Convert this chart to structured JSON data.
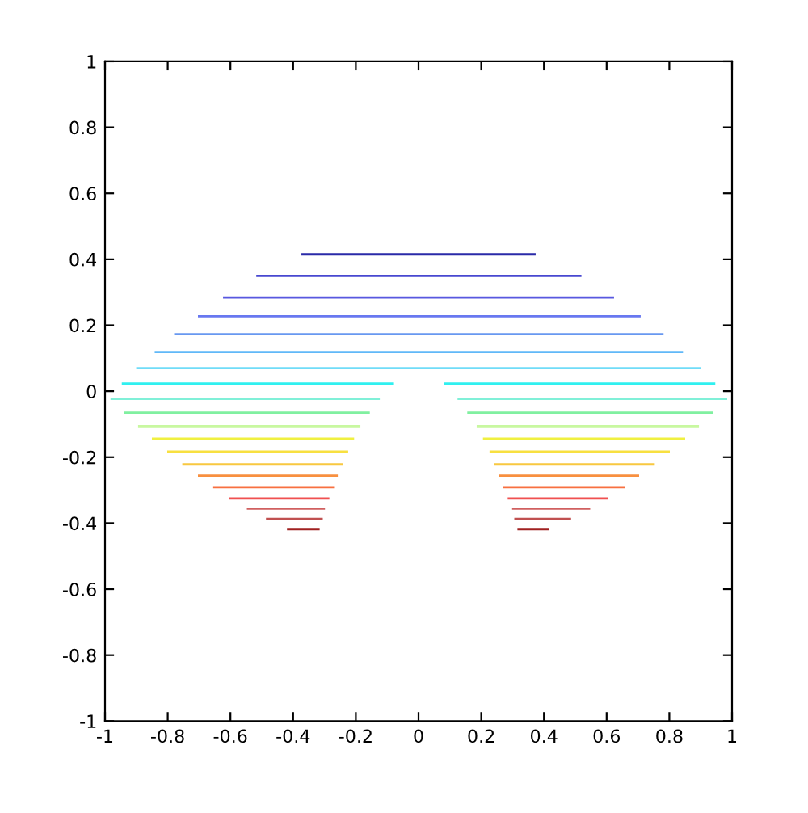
{
  "chart_data": {
    "type": "line",
    "xlim": [
      -1,
      1
    ],
    "ylim": [
      -1,
      1
    ],
    "xticks": [
      -1,
      {
        "value": -0.8,
        "label": "-0.8"
      },
      {
        "value": -0.6,
        "label": "-0.6"
      },
      {
        "value": -0.4,
        "label": "-0.4"
      },
      {
        "value": -0.2,
        "label": "-0.2"
      },
      0,
      0.2,
      0.4,
      0.6,
      0.8,
      1
    ],
    "yticks": [
      -1,
      {
        "value": -0.8,
        "label": "-0.8"
      },
      {
        "value": -0.6,
        "label": "-0.6"
      },
      {
        "value": -0.4,
        "label": "-0.4"
      },
      {
        "value": -0.2,
        "label": "-0.2"
      },
      0,
      0.2,
      0.4,
      0.6,
      0.8,
      1
    ],
    "grid": false,
    "marker": "none",
    "line_style": "solid",
    "series": [
      {
        "color": "#2a2aa8",
        "x": [
          -0.37,
          0.37
        ],
        "values": [
          0.415,
          0.415
        ]
      },
      {
        "color": "#4848d0",
        "x": [
          -0.514,
          0.516
        ],
        "values": [
          0.35,
          0.35
        ]
      },
      {
        "color": "#5858e0",
        "x": [
          -0.62,
          0.62
        ],
        "values": [
          0.284,
          0.284
        ]
      },
      {
        "color": "#6878f0",
        "x": [
          -0.7,
          0.705
        ],
        "values": [
          0.227,
          0.227
        ]
      },
      {
        "color": "#6898f0",
        "x": [
          -0.776,
          0.778
        ],
        "values": [
          0.173,
          0.173
        ]
      },
      {
        "color": "#60b8f8",
        "x": [
          -0.838,
          0.84
        ],
        "values": [
          0.119,
          0.119
        ]
      },
      {
        "color": "#70dcf8",
        "x": [
          -0.897,
          0.897
        ],
        "values": [
          0.07,
          0.07
        ]
      },
      {
        "color": "#30f0f0",
        "x": [
          -0.943,
          -0.082,
          null,
          0.085,
          0.943
        ],
        "values": [
          0.023,
          0.023,
          null,
          0.023,
          0.023
        ]
      },
      {
        "color": "#80f0d8",
        "x": [
          -0.979,
          -0.127,
          null,
          0.128,
          0.981
        ],
        "values": [
          -0.023,
          -0.023,
          null,
          -0.023,
          -0.023
        ]
      },
      {
        "color": "#80f0a0",
        "x": [
          -0.936,
          -0.159,
          null,
          0.159,
          0.936
        ],
        "values": [
          -0.065,
          -0.065,
          null,
          -0.065,
          -0.065
        ]
      },
      {
        "color": "#c8f8a0",
        "x": [
          -0.891,
          -0.189,
          null,
          0.189,
          0.891
        ],
        "values": [
          -0.106,
          -0.106,
          null,
          -0.106,
          -0.106
        ]
      },
      {
        "color": "#f0f040",
        "x": [
          -0.847,
          -0.209,
          null,
          0.209,
          0.847
        ],
        "values": [
          -0.144,
          -0.144,
          null,
          -0.144,
          -0.144
        ]
      },
      {
        "color": "#f8e040",
        "x": [
          -0.798,
          -0.228,
          null,
          0.23,
          0.798
        ],
        "values": [
          -0.183,
          -0.183,
          null,
          -0.183,
          -0.183
        ]
      },
      {
        "color": "#f8c840",
        "x": [
          -0.75,
          -0.245,
          null,
          0.245,
          0.75
        ],
        "values": [
          -0.222,
          -0.222,
          null,
          -0.222,
          -0.222
        ]
      },
      {
        "color": "#f89040",
        "x": [
          -0.7,
          -0.261,
          null,
          0.261,
          0.7
        ],
        "values": [
          -0.256,
          -0.256,
          null,
          -0.256,
          -0.256
        ]
      },
      {
        "color": "#f87040",
        "x": [
          -0.654,
          -0.273,
          null,
          0.273,
          0.654
        ],
        "values": [
          -0.291,
          -0.291,
          null,
          -0.291,
          -0.291
        ]
      },
      {
        "color": "#f05050",
        "x": [
          -0.602,
          -0.288,
          null,
          0.288,
          0.6
        ],
        "values": [
          -0.325,
          -0.325,
          null,
          -0.325,
          -0.325
        ]
      },
      {
        "color": "#d06060",
        "x": [
          -0.544,
          -0.302,
          null,
          0.302,
          0.544
        ],
        "values": [
          -0.356,
          -0.356,
          null,
          -0.356,
          -0.356
        ]
      },
      {
        "color": "#c05050",
        "x": [
          -0.483,
          -0.309,
          null,
          0.309,
          0.483
        ],
        "values": [
          -0.387,
          -0.387,
          null,
          -0.387,
          -0.387
        ]
      },
      {
        "color": "#a02020",
        "x": [
          -0.416,
          -0.319,
          null,
          0.319,
          0.414
        ],
        "values": [
          -0.418,
          -0.418,
          null,
          -0.418,
          -0.418
        ]
      }
    ]
  }
}
